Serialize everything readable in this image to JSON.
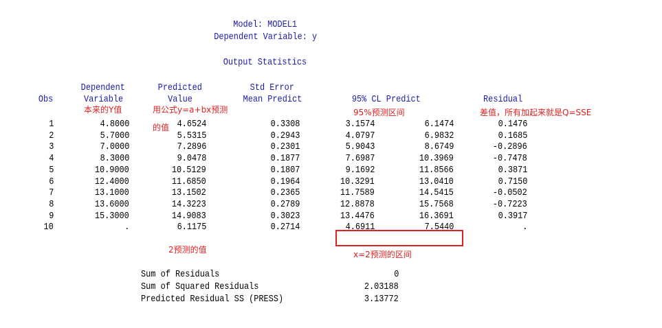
{
  "header": {
    "model": "Model: MODEL1",
    "dependent": "Dependent Variable: y",
    "section": "Output Statistics"
  },
  "table": {
    "columns": [
      [
        "Obs"
      ],
      [
        "Dependent",
        "Variable"
      ],
      [
        "Predicted",
        "Value"
      ],
      [
        "Std Error",
        "Mean Predict"
      ],
      [
        "95% CL Predict"
      ],
      [
        "Residual"
      ]
    ],
    "rows": [
      [
        "1",
        "4.8000",
        "4.6524",
        "0.3308",
        "3.1574",
        "6.1474",
        "0.1476"
      ],
      [
        "2",
        "5.7000",
        "5.5315",
        "0.2943",
        "4.0797",
        "6.9832",
        "0.1685"
      ],
      [
        "3",
        "7.0000",
        "7.2896",
        "0.2301",
        "5.9043",
        "8.6749",
        "-0.2896"
      ],
      [
        "4",
        "8.3000",
        "9.0478",
        "0.1877",
        "7.6987",
        "10.3969",
        "-0.7478"
      ],
      [
        "5",
        "10.9000",
        "10.5129",
        "0.1807",
        "9.1692",
        "11.8566",
        "0.3871"
      ],
      [
        "6",
        "12.4000",
        "11.6850",
        "0.1964",
        "10.3291",
        "13.0410",
        "0.7150"
      ],
      [
        "7",
        "13.1000",
        "13.1502",
        "0.2365",
        "11.7589",
        "14.5415",
        "-0.0502"
      ],
      [
        "8",
        "13.6000",
        "14.3223",
        "0.2789",
        "12.8878",
        "15.7568",
        "-0.7223"
      ],
      [
        "9",
        "15.3000",
        "14.9083",
        "0.3023",
        "13.4476",
        "16.3691",
        "0.3917"
      ],
      [
        "10",
        ".",
        "6.1175",
        "0.2714",
        "4.6911",
        "7.5440",
        "."
      ]
    ]
  },
  "summary": [
    [
      "Sum of Residuals",
      "0"
    ],
    [
      "Sum of Squared Residuals",
      "2.03188"
    ],
    [
      "Predicted Residual SS (PRESS)",
      "3.13772"
    ]
  ],
  "annotations": {
    "actual": "本来的Y值",
    "predicted_line1": "用公式y=a+bx预测",
    "predicted_line2": "的值",
    "interval": "95%预测区间",
    "residual": "差值，所有加起来就是Q=SSE",
    "x2_value": "2预测的值",
    "x2_interval": "x=2预测的区间"
  }
}
